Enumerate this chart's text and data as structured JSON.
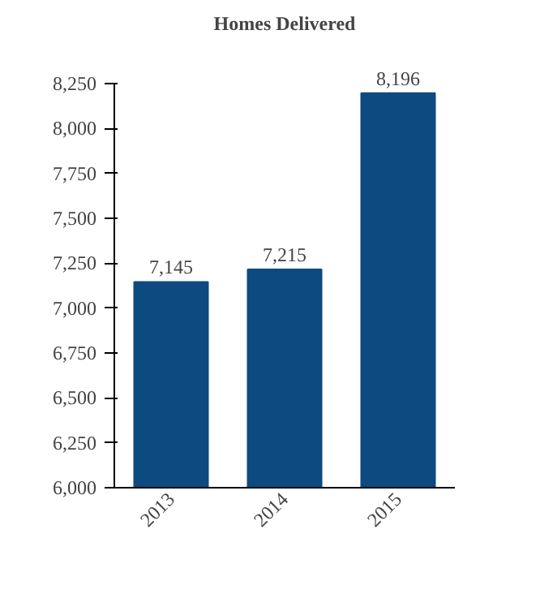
{
  "chart_data": {
    "type": "bar",
    "title": "Homes Delivered",
    "categories": [
      "2013",
      "2014",
      "2015"
    ],
    "values": [
      7145,
      7215,
      8196
    ],
    "color": "#0d4a7f",
    "ylim": [
      6000,
      8250
    ],
    "yticks": [
      {
        "value": 6000,
        "label": "6,000"
      },
      {
        "value": 6250,
        "label": "6,250"
      },
      {
        "value": 6500,
        "label": "6,500"
      },
      {
        "value": 6750,
        "label": "6,750"
      },
      {
        "value": 7000,
        "label": "7,000"
      },
      {
        "value": 7250,
        "label": "7,250"
      },
      {
        "value": 7500,
        "label": "7,500"
      },
      {
        "value": 7750,
        "label": "7,750"
      },
      {
        "value": 8000,
        "label": "8,000"
      },
      {
        "value": 8250,
        "label": "8,250"
      }
    ],
    "value_labels": [
      "7,145",
      "7,215",
      "8,196"
    ],
    "grid": false
  }
}
